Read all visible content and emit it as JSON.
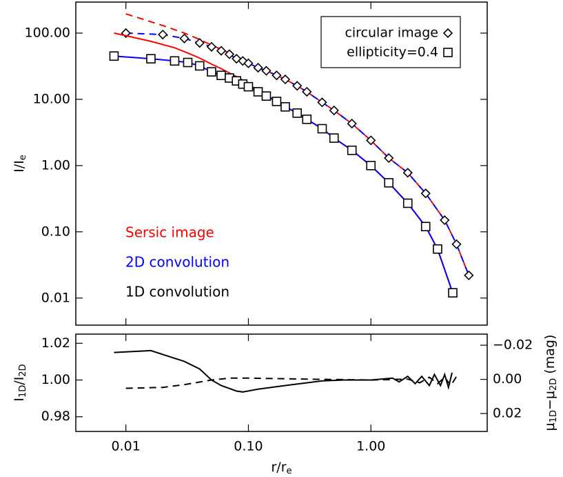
{
  "chart_data": [
    {
      "type": "line",
      "xscale": "log",
      "yscale": "log",
      "xlim": [
        0.0039,
        8.9
      ],
      "ylim": [
        0.0039,
        294
      ],
      "xticks": [
        {
          "value": 0.01,
          "label": "0.01"
        },
        {
          "value": 0.1,
          "label": "0.10"
        },
        {
          "value": 1,
          "label": "1.00"
        }
      ],
      "show_xtick_labels": false,
      "yticks": [
        {
          "value": 0.01,
          "label": "0.01"
        },
        {
          "value": 0.1,
          "label": "0.10"
        },
        {
          "value": 1,
          "label": "1.00"
        },
        {
          "value": 10,
          "label": "10.00"
        },
        {
          "value": 100,
          "label": "100.00"
        }
      ],
      "ylabel": [
        {
          "text": "I/I"
        },
        {
          "text": "e",
          "sub": true
        }
      ],
      "legend": [
        {
          "text": "Sersic image",
          "color": "#ff0000"
        },
        {
          "text": "2D convolution",
          "color": "#0000ff"
        },
        {
          "text": "1D convolution",
          "color": "#000000"
        }
      ],
      "marker_legend": [
        {
          "text": "circular image",
          "marker": "diamond"
        },
        {
          "text": "ellipticity=0.4",
          "marker": "square"
        }
      ],
      "series": [
        {
          "color": "#ff0000",
          "style": "dashed",
          "x": [
            0.01,
            0.02,
            0.03,
            0.04,
            0.05,
            0.06,
            0.07,
            0.08,
            0.09,
            0.1,
            0.12,
            0.14,
            0.17,
            0.2,
            0.25,
            0.3,
            0.4,
            0.5,
            0.7,
            1,
            1.4,
            2,
            2.8,
            4,
            5,
            6.3
          ],
          "values": [
            195,
            130,
            100,
            80,
            66,
            57,
            50,
            44,
            40,
            36,
            30,
            27,
            23,
            20,
            16,
            13,
            9,
            6.8,
            4.3,
            2.4,
            1.3,
            0.78,
            0.38,
            0.15,
            0.065,
            0.022
          ]
        },
        {
          "color": "#0000ff",
          "style": "dashed",
          "x": [
            0.01,
            0.02,
            0.03,
            0.04,
            0.05,
            0.06,
            0.07,
            0.08,
            0.09,
            0.1,
            0.12,
            0.14,
            0.17,
            0.2,
            0.25,
            0.3,
            0.4,
            0.5,
            0.7,
            1,
            1.4,
            2,
            2.8,
            4,
            5,
            6.3
          ],
          "values": [
            100,
            95,
            83,
            71,
            62,
            54,
            48,
            41,
            38,
            35,
            30,
            27,
            23,
            20,
            16,
            13,
            9,
            6.8,
            4.3,
            2.4,
            1.3,
            0.78,
            0.38,
            0.15,
            0.065,
            0.022
          ]
        },
        {
          "color": "#000000",
          "marker": "diamond",
          "x": [
            0.01,
            0.02,
            0.03,
            0.04,
            0.05,
            0.06,
            0.07,
            0.08,
            0.09,
            0.1,
            0.12,
            0.14,
            0.17,
            0.2,
            0.25,
            0.3,
            0.4,
            0.5,
            0.7,
            1,
            1.4,
            2,
            2.8,
            4,
            5,
            6.3
          ],
          "values": [
            100,
            95,
            83,
            71,
            62,
            54,
            48,
            41,
            38,
            35,
            30,
            27,
            23,
            20,
            16,
            13,
            9,
            6.8,
            4.3,
            2.4,
            1.3,
            0.78,
            0.38,
            0.15,
            0.065,
            0.022
          ]
        },
        {
          "color": "#ff0000",
          "style": "solid",
          "x": [
            0.008,
            0.016,
            0.025,
            0.032,
            0.04,
            0.05,
            0.06,
            0.07,
            0.08,
            0.09,
            0.1,
            0.12,
            0.14,
            0.17,
            0.2,
            0.25,
            0.3,
            0.4,
            0.5,
            0.7,
            1,
            1.4,
            2,
            2.8,
            3.5,
            4.66
          ],
          "values": [
            100,
            75,
            60,
            50,
            42,
            34,
            29,
            25,
            22,
            19.5,
            17,
            13.5,
            11.5,
            9.4,
            7.8,
            6.2,
            5,
            3.6,
            2.6,
            1.7,
            1,
            0.55,
            0.27,
            0.12,
            0.055,
            0.012
          ]
        },
        {
          "color": "#0000ff",
          "style": "solid",
          "x": [
            0.008,
            0.016,
            0.025,
            0.032,
            0.04,
            0.05,
            0.06,
            0.07,
            0.08,
            0.09,
            0.1,
            0.12,
            0.14,
            0.17,
            0.2,
            0.25,
            0.3,
            0.4,
            0.5,
            0.7,
            1,
            1.4,
            2,
            2.8,
            3.5,
            4.66
          ],
          "values": [
            45,
            41,
            38,
            36,
            32,
            26,
            23,
            21,
            19,
            17,
            15.5,
            13,
            11.2,
            9.3,
            7.7,
            6.2,
            5,
            3.6,
            2.6,
            1.7,
            1,
            0.55,
            0.27,
            0.12,
            0.055,
            0.012
          ]
        },
        {
          "color": "#000000",
          "marker": "square",
          "x": [
            0.008,
            0.016,
            0.025,
            0.032,
            0.04,
            0.05,
            0.06,
            0.07,
            0.08,
            0.09,
            0.1,
            0.12,
            0.14,
            0.17,
            0.2,
            0.25,
            0.3,
            0.4,
            0.5,
            0.7,
            1,
            1.4,
            2,
            2.8,
            3.5,
            4.66
          ],
          "values": [
            45,
            41,
            38,
            36,
            32,
            26,
            23,
            21,
            19,
            17,
            15.5,
            13,
            11.2,
            9.3,
            7.7,
            6.2,
            5,
            3.6,
            2.6,
            1.7,
            1,
            0.55,
            0.27,
            0.12,
            0.055,
            0.012
          ]
        }
      ]
    },
    {
      "type": "line",
      "xscale": "log",
      "xlim": [
        0.0039,
        8.9
      ],
      "ylim": [
        0.972,
        1.025
      ],
      "y2lim": [
        0.0305,
        -0.0265
      ],
      "xticks": [
        {
          "value": 0.01,
          "label": "0.01"
        },
        {
          "value": 0.1,
          "label": "0.10"
        },
        {
          "value": 1,
          "label": "1.00"
        }
      ],
      "show_xtick_labels": true,
      "yticks": [
        {
          "value": 0.98,
          "label": "0.98"
        },
        {
          "value": 1,
          "label": "1.00"
        },
        {
          "value": 1.02,
          "label": "1.02"
        }
      ],
      "y2ticks": [
        {
          "value": -0.02,
          "label": "−0.02"
        },
        {
          "value": 0,
          "label": "0.00"
        },
        {
          "value": 0.02,
          "label": "0.02"
        }
      ],
      "xlabel": [
        {
          "text": "r/r"
        },
        {
          "text": "e",
          "sub": true
        }
      ],
      "ylabel": [
        {
          "text": "I"
        },
        {
          "text": "1D",
          "sub": true
        },
        {
          "text": "/I"
        },
        {
          "text": "2D",
          "sub": true
        }
      ],
      "y2label": [
        {
          "text": "μ"
        },
        {
          "text": "1D",
          "sub": true
        },
        {
          "text": "−μ"
        },
        {
          "text": "2D",
          "sub": true
        },
        {
          "text": " (mag)"
        }
      ],
      "series": [
        {
          "color": "#000000",
          "style": "solid",
          "x": [
            0.008,
            0.016,
            0.03,
            0.04,
            0.05,
            0.06,
            0.08,
            0.09,
            0.12,
            0.2,
            0.4,
            0.6,
            1,
            1.5,
            1.7,
            2,
            2.3,
            2.6,
            3,
            3.3,
            3.7,
            4,
            4.3,
            4.6
          ],
          "values": [
            1.015,
            1.016,
            1.0101,
            1.006,
            1.0,
            0.997,
            0.994,
            0.9935,
            0.995,
            0.997,
            0.9995,
            1.0,
            1.0,
            1.001,
            0.999,
            1.002,
            0.998,
            1.002,
            0.997,
            1.003,
            0.997,
            1.003,
            0.996,
            1.004
          ]
        },
        {
          "color": "#000000",
          "style": "dashed",
          "x": [
            0.01,
            0.02,
            0.03,
            0.05,
            0.07,
            0.1,
            0.3,
            1,
            2,
            2.5,
            3,
            3.5,
            4,
            4.5,
            5
          ],
          "values": [
            0.9955,
            0.996,
            0.9975,
            1.0,
            1.001,
            1.001,
            1.0005,
            1.0,
            1.0005,
            0.9985,
            1.0015,
            0.998,
            1.0015,
            0.997,
            1.002
          ]
        }
      ]
    }
  ]
}
